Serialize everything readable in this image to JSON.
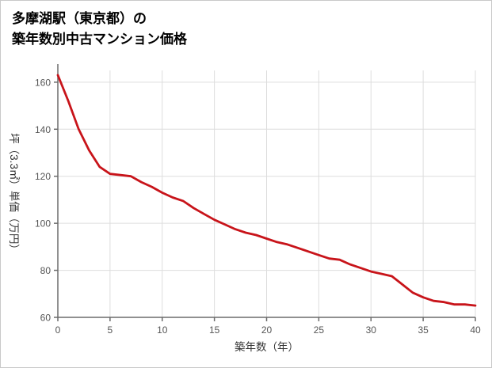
{
  "page": {
    "background": "#ffffff",
    "border_color": "#c9c9c9"
  },
  "chart_data": {
    "type": "line",
    "title_line1": "多摩湖駅（東京都）の",
    "title_line2": "築年数別中古マンション価格",
    "xlabel": "築年数（年）",
    "ylabel": "坪（3.3㎡）単価（万円）",
    "xlim": [
      0,
      40
    ],
    "ylim": [
      60,
      165
    ],
    "xticks": [
      0,
      5,
      10,
      15,
      20,
      25,
      30,
      35,
      40
    ],
    "yticks": [
      60,
      80,
      100,
      120,
      140,
      160
    ],
    "grid": true,
    "grid_color": "#dddddd",
    "axis_color": "#6b6b6b",
    "legend": "none",
    "series": [
      {
        "color": "#c8141a",
        "x": [
          0,
          1,
          2,
          3,
          4,
          5,
          6,
          7,
          8,
          9,
          10,
          11,
          12,
          13,
          14,
          15,
          16,
          17,
          18,
          19,
          20,
          21,
          22,
          23,
          24,
          25,
          26,
          27,
          28,
          29,
          30,
          31,
          32,
          33,
          34,
          35,
          36,
          37,
          38,
          39,
          40
        ],
        "values": [
          163,
          152,
          140,
          131,
          124,
          121,
          120.5,
          120,
          117.5,
          115.5,
          113,
          111,
          109.5,
          106.5,
          104,
          101.5,
          99.5,
          97.5,
          96,
          95,
          93.5,
          92,
          91,
          89.5,
          88,
          86.5,
          85,
          84.5,
          82.5,
          81,
          79.5,
          78.5,
          77.5,
          74,
          70.5,
          68.5,
          67,
          66.5,
          65.5,
          65.5,
          65
        ]
      }
    ]
  }
}
